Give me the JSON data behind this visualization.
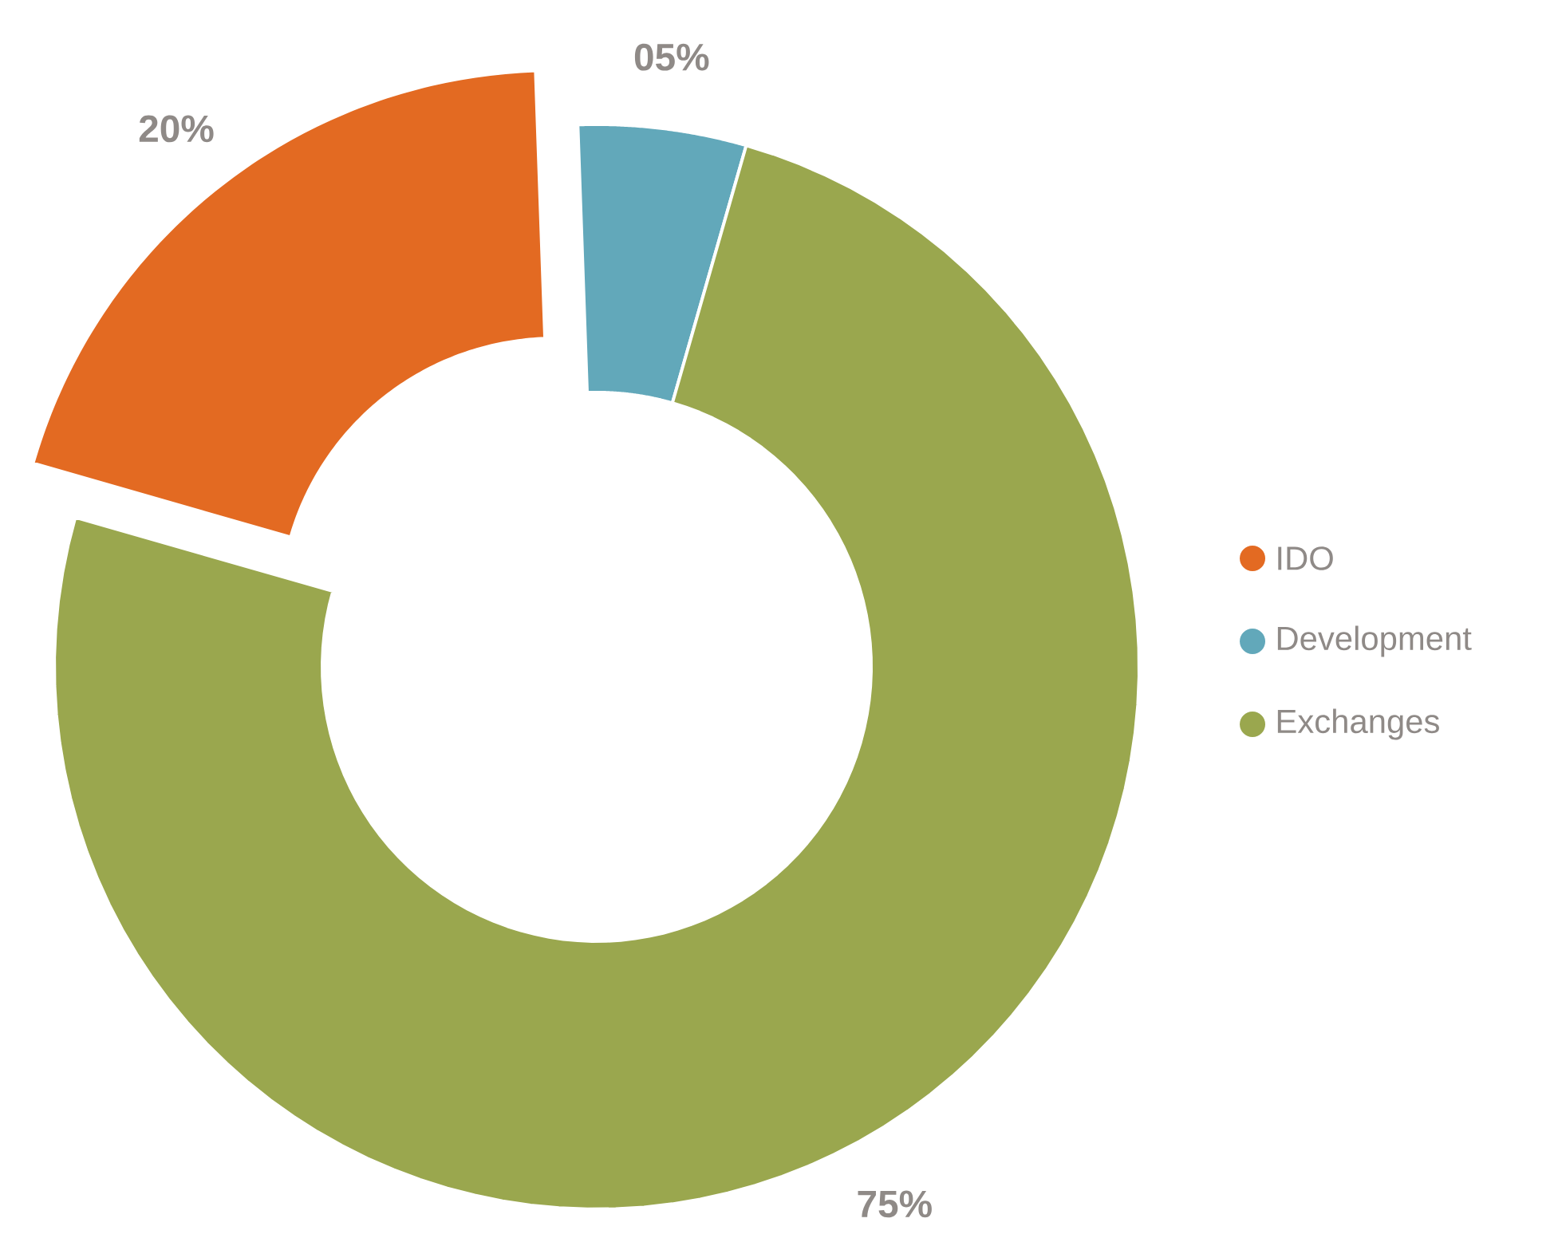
{
  "chart_data": {
    "type": "donut",
    "categories": [
      "IDO",
      "Development",
      "Exchanges"
    ],
    "values": [
      20,
      5,
      75
    ],
    "colors": [
      "#e36a22",
      "#62a8ba",
      "#9aa74e"
    ],
    "value_labels": [
      "20%",
      "05%",
      "75%"
    ],
    "legend": "right"
  }
}
